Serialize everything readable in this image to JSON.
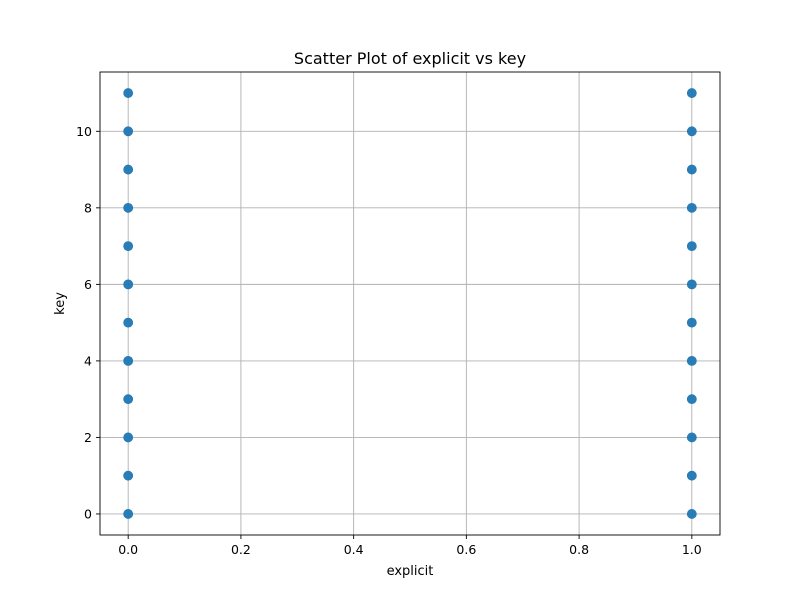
{
  "chart_data": {
    "type": "scatter",
    "title": "Scatter Plot of explicit vs key",
    "xlabel": "explicit",
    "ylabel": "key",
    "xlim": [
      -0.05,
      1.05
    ],
    "ylim": [
      -0.55,
      11.55
    ],
    "xticks": [
      0.0,
      0.2,
      0.4,
      0.6,
      0.8,
      1.0
    ],
    "xtick_labels": [
      "0.0",
      "0.2",
      "0.4",
      "0.6",
      "0.8",
      "1.0"
    ],
    "yticks": [
      0,
      2,
      4,
      6,
      8,
      10
    ],
    "ytick_labels": [
      "0",
      "2",
      "4",
      "6",
      "8",
      "10"
    ],
    "grid": true,
    "marker_color": "#1f77b4",
    "series": [
      {
        "points": [
          {
            "x": 0,
            "y": 0
          },
          {
            "x": 0,
            "y": 1
          },
          {
            "x": 0,
            "y": 2
          },
          {
            "x": 0,
            "y": 3
          },
          {
            "x": 0,
            "y": 4
          },
          {
            "x": 0,
            "y": 5
          },
          {
            "x": 0,
            "y": 6
          },
          {
            "x": 0,
            "y": 7
          },
          {
            "x": 0,
            "y": 8
          },
          {
            "x": 0,
            "y": 9
          },
          {
            "x": 0,
            "y": 10
          },
          {
            "x": 0,
            "y": 11
          },
          {
            "x": 1,
            "y": 0
          },
          {
            "x": 1,
            "y": 1
          },
          {
            "x": 1,
            "y": 2
          },
          {
            "x": 1,
            "y": 3
          },
          {
            "x": 1,
            "y": 4
          },
          {
            "x": 1,
            "y": 5
          },
          {
            "x": 1,
            "y": 6
          },
          {
            "x": 1,
            "y": 7
          },
          {
            "x": 1,
            "y": 8
          },
          {
            "x": 1,
            "y": 9
          },
          {
            "x": 1,
            "y": 10
          },
          {
            "x": 1,
            "y": 11
          }
        ]
      }
    ]
  }
}
